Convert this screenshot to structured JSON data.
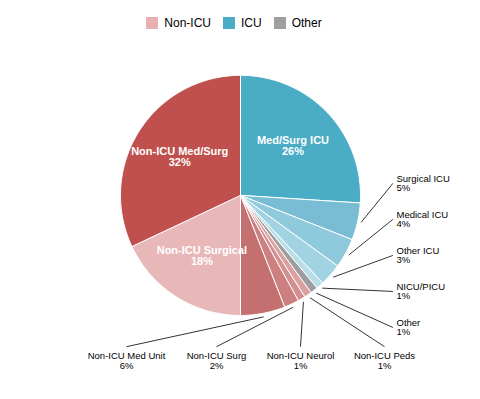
{
  "chart_data": {
    "type": "pie",
    "categories": [
      "Med/Surg ICU",
      "Surgical ICU",
      "Medical ICU",
      "Other ICU",
      "NICU/PICU",
      "Other",
      "Non-ICU Peds",
      "Non-ICU Neurol",
      "Non-ICU Surg",
      "Non-ICU Med Unit",
      "Non-ICU Surgical",
      "Non-ICU Med/Surg"
    ],
    "values": [
      26,
      5,
      4,
      3,
      1,
      1,
      1,
      1,
      2,
      6,
      18,
      32
    ],
    "value_labels": [
      "26%",
      "5%",
      "4%",
      "3%",
      "1%",
      "1%",
      "1%",
      "1%",
      "2%",
      "6%",
      "18%",
      "32%"
    ],
    "colors": [
      "#4bacc6",
      "#78bdd4",
      "#8ecadc",
      "#a2d3e2",
      "#b8dfe8",
      "#9e9e9e",
      "#dca0a0",
      "#d49090",
      "#cc8080",
      "#c47070",
      "#e8b8b8",
      "#c0504d"
    ],
    "data_labels": true,
    "legend": "top",
    "legend_entries": [
      {
        "label": "Non-ICU",
        "color": "#e8b0b0"
      },
      {
        "label": "ICU",
        "color": "#4bacc6"
      },
      {
        "label": "Other",
        "color": "#9e9e9e"
      }
    ]
  }
}
